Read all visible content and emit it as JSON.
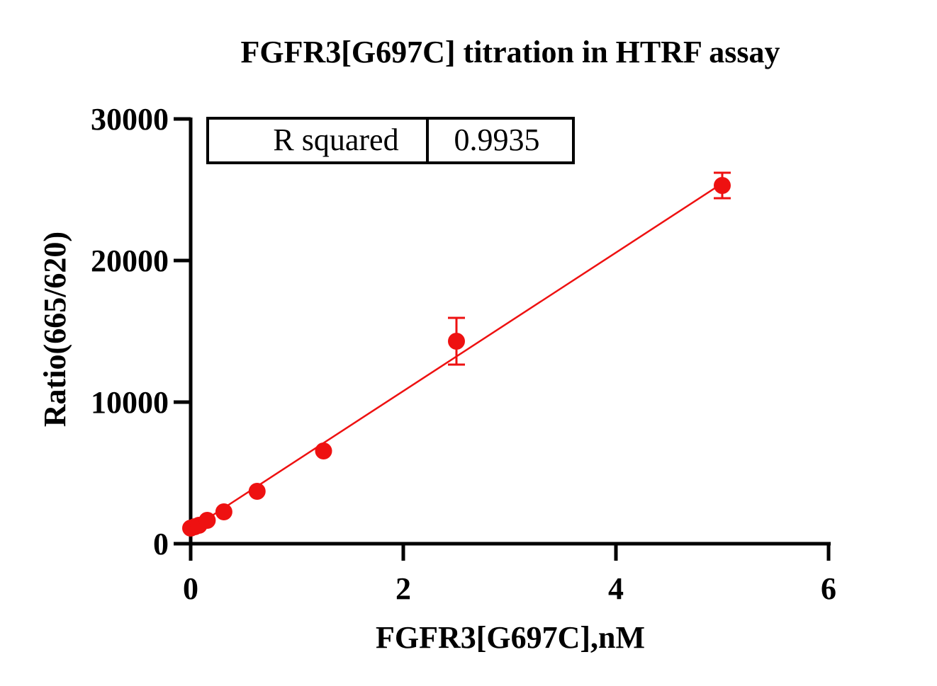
{
  "chart_data": {
    "type": "scatter",
    "title": "FGFR3[G697C] titration in HTRF assay",
    "xlabel": "FGFR3[G697C],nM",
    "ylabel": "Ratio(665/620)",
    "xlim": [
      0,
      6
    ],
    "ylim": [
      0,
      30000
    ],
    "x_ticks": [
      0,
      2,
      4,
      6
    ],
    "y_ticks": [
      0,
      10000,
      20000,
      30000
    ],
    "x_tick_labels": [
      "0",
      "2",
      "4",
      "6"
    ],
    "y_tick_labels": [
      "0",
      "10000",
      "20000",
      "30000"
    ],
    "grid": false,
    "legend": "none",
    "series": [
      {
        "color": "#ee1111",
        "points": [
          {
            "x": 0.0,
            "y": 1100,
            "err": 0
          },
          {
            "x": 0.039,
            "y": 1200,
            "err": 0
          },
          {
            "x": 0.078,
            "y": 1300,
            "err": 0
          },
          {
            "x": 0.156,
            "y": 1650,
            "err": 0
          },
          {
            "x": 0.3125,
            "y": 2250,
            "err": 0
          },
          {
            "x": 0.625,
            "y": 3700,
            "err": 0
          },
          {
            "x": 1.25,
            "y": 6550,
            "err": 0
          },
          {
            "x": 2.5,
            "y": 14300,
            "err": 1650
          },
          {
            "x": 5.0,
            "y": 25300,
            "err": 900
          }
        ]
      }
    ],
    "fit_line": {
      "color": "#ee1111",
      "x": [
        0,
        5.0
      ],
      "y": [
        1000,
        25450
      ]
    },
    "stats_table": {
      "label": "R squared",
      "value": "0.9935"
    }
  }
}
